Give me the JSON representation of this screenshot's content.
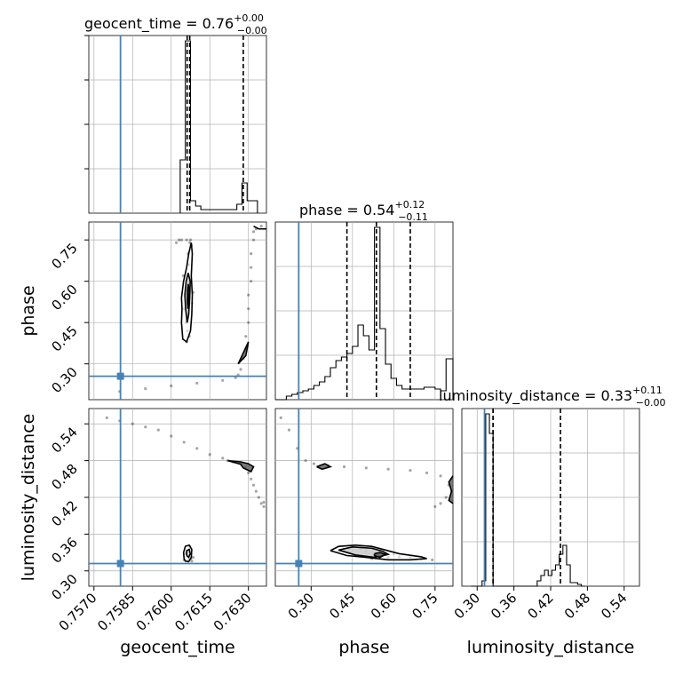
{
  "chart_data": {
    "type": "corner",
    "params": [
      "geocent_time",
      "phase",
      "luminosity_distance"
    ],
    "axis_labels": [
      "geocent_time",
      "phase",
      "luminosity_distance"
    ],
    "truth_color": "#4682b4",
    "truths": [
      0.75803,
      0.255,
      0.312
    ],
    "ranges": [
      [
        0.7568,
        0.7637
      ],
      [
        0.17,
        0.815
      ],
      [
        0.275,
        0.565
      ]
    ],
    "ticks": {
      "geocent_time": [
        "0.7570",
        "0.7585",
        "0.7600",
        "0.7615",
        "0.7630"
      ],
      "phase": [
        "0.30",
        "0.45",
        "0.60",
        "0.75"
      ],
      "luminosity_distance": [
        "0.30",
        "0.36",
        "0.42",
        "0.48",
        "0.54"
      ]
    },
    "titles": [
      {
        "param": "geocent_time",
        "prefix": "geocent_time = 0.76",
        "plus": "+0.00",
        "minus": "−0.00"
      },
      {
        "param": "phase",
        "prefix": "phase = 0.54",
        "plus": "+0.12",
        "minus": "−0.11"
      },
      {
        "param": "luminosity_distance",
        "prefix": "luminosity_distance = 0.33",
        "plus": "+0.11",
        "minus": "−0.00"
      }
    ],
    "quantiles": {
      "geocent_time": [
        0.76062,
        0.76072,
        0.7628
      ],
      "phase": [
        0.43,
        0.537,
        0.66
      ],
      "luminosity_distance": [
        0.326,
        0.326,
        0.436
      ]
    },
    "histograms": {
      "geocent_time": {
        "edges": [
          0.76035,
          0.76055,
          0.76075,
          0.76095,
          0.76115,
          0.76135,
          0.76155,
          0.76175,
          0.76195,
          0.76215,
          0.76235,
          0.76255,
          0.76275,
          0.76295,
          0.76315,
          0.76335
        ],
        "counts": [
          0.3,
          0.97,
          0.07,
          0.04,
          0.02,
          0.02,
          0.02,
          0.02,
          0.02,
          0.02,
          0.02,
          0.05,
          0.17,
          0.07,
          0.07
        ]
      },
      "phase": {
        "edges": [
          0.17,
          0.19,
          0.21,
          0.23,
          0.25,
          0.27,
          0.29,
          0.31,
          0.33,
          0.35,
          0.37,
          0.39,
          0.41,
          0.43,
          0.45,
          0.47,
          0.49,
          0.51,
          0.53,
          0.55,
          0.57,
          0.59,
          0.61,
          0.63,
          0.65,
          0.67,
          0.69,
          0.71,
          0.73,
          0.75,
          0.77,
          0.79,
          0.81,
          0.815
        ],
        "counts": [
          0.0,
          0.0,
          0.02,
          0.03,
          0.04,
          0.05,
          0.06,
          0.08,
          0.1,
          0.13,
          0.18,
          0.22,
          0.24,
          0.26,
          0.3,
          0.42,
          0.36,
          0.28,
          0.97,
          0.4,
          0.2,
          0.12,
          0.08,
          0.06,
          0.06,
          0.06,
          0.06,
          0.07,
          0.07,
          0.06,
          0.05,
          0.23,
          0.23
        ]
      },
      "luminosity_distance": {
        "edges": [
          0.29,
          0.296,
          0.302,
          0.308,
          0.314,
          0.32,
          0.326,
          0.332,
          0.338,
          0.344,
          0.35,
          0.356,
          0.362,
          0.368,
          0.374,
          0.38,
          0.386,
          0.392,
          0.398,
          0.404,
          0.41,
          0.416,
          0.422,
          0.428,
          0.434,
          0.44,
          0.446,
          0.452,
          0.458,
          0.464,
          0.47,
          0.476
        ],
        "counts": [
          0.0,
          0.0,
          0.0,
          0.03,
          0.97,
          0.86,
          0.0,
          0.0,
          0.0,
          0.0,
          0.0,
          0.0,
          0.0,
          0.0,
          0.0,
          0.0,
          0.0,
          0.0,
          0.03,
          0.06,
          0.09,
          0.06,
          0.09,
          0.12,
          0.18,
          0.23,
          0.12,
          0.02,
          0.02,
          0.01,
          0.0
        ]
      }
    },
    "pairs": [
      {
        "x": "geocent_time",
        "y": "phase",
        "samples": [
          [
            0.76055,
            0.55
          ],
          [
            0.7606,
            0.52
          ],
          [
            0.76065,
            0.58
          ],
          [
            0.76062,
            0.48
          ],
          [
            0.7607,
            0.6
          ],
          [
            0.76058,
            0.45
          ],
          [
            0.76068,
            0.66
          ],
          [
            0.76066,
            0.7
          ],
          [
            0.76072,
            0.74
          ],
          [
            0.76075,
            0.75
          ],
          [
            0.76078,
            0.73
          ],
          [
            0.7605,
            0.5
          ],
          [
            0.76085,
            0.56
          ],
          [
            0.7608,
            0.52
          ],
          [
            0.76047,
            0.62
          ],
          [
            0.76063,
            0.42
          ],
          [
            0.7607,
            0.4
          ],
          [
            0.7606,
            0.38
          ],
          [
            0.7603,
            0.75
          ],
          [
            0.7604,
            0.75
          ],
          [
            0.7602,
            0.74
          ],
          [
            0.7606,
            0.75
          ],
          [
            0.7627,
            0.28
          ],
          [
            0.7628,
            0.32
          ],
          [
            0.7629,
            0.35
          ],
          [
            0.7629,
            0.4
          ],
          [
            0.763,
            0.45
          ],
          [
            0.763,
            0.5
          ],
          [
            0.763,
            0.55
          ],
          [
            0.7631,
            0.6
          ],
          [
            0.7631,
            0.65
          ],
          [
            0.7631,
            0.7
          ],
          [
            0.7632,
            0.75
          ],
          [
            0.7632,
            0.78
          ],
          [
            0.7626,
            0.26
          ],
          [
            0.7633,
            0.79
          ],
          [
            0.7635,
            0.8
          ],
          [
            0.7625,
            0.25
          ],
          [
            0.762,
            0.24
          ],
          [
            0.761,
            0.23
          ],
          [
            0.76,
            0.22
          ],
          [
            0.759,
            0.21
          ],
          [
            0.758,
            0.2
          ]
        ],
        "contours": [
          [
            [
              0.7604,
              0.54
            ],
            [
              0.76048,
              0.6
            ],
            [
              0.7606,
              0.65
            ],
            [
              0.76068,
              0.7
            ],
            [
              0.76078,
              0.74
            ],
            [
              0.76082,
              0.7
            ],
            [
              0.76078,
              0.62
            ],
            [
              0.76082,
              0.55
            ],
            [
              0.7608,
              0.48
            ],
            [
              0.76075,
              0.42
            ],
            [
              0.7606,
              0.38
            ],
            [
              0.76045,
              0.39
            ],
            [
              0.7604,
              0.45
            ],
            [
              0.76042,
              0.5
            ],
            [
              0.7604,
              0.54
            ]
          ],
          [
            [
              0.76053,
              0.55
            ],
            [
              0.76058,
              0.6
            ],
            [
              0.76066,
              0.63
            ],
            [
              0.76074,
              0.6
            ],
            [
              0.76072,
              0.54
            ],
            [
              0.76068,
              0.48
            ],
            [
              0.76062,
              0.45
            ],
            [
              0.76056,
              0.5
            ],
            [
              0.76053,
              0.55
            ]
          ],
          [
            [
              0.76063,
              0.56
            ],
            [
              0.76066,
              0.59
            ],
            [
              0.7607,
              0.57
            ],
            [
              0.76068,
              0.52
            ],
            [
              0.76065,
              0.5
            ],
            [
              0.76063,
              0.53
            ],
            [
              0.76063,
              0.56
            ]
          ],
          [
            [
              0.7626,
              0.3
            ],
            [
              0.7629,
              0.33
            ],
            [
              0.763,
              0.38
            ],
            [
              0.7628,
              0.34
            ],
            [
              0.7626,
              0.3
            ]
          ],
          [
            [
              0.7632,
              0.8
            ],
            [
              0.7634,
              0.79
            ],
            [
              0.7637,
              0.79
            ]
          ]
        ]
      },
      {
        "x": "geocent_time",
        "y": "luminosity_distance",
        "samples": [
          [
            0.7606,
            0.33
          ],
          [
            0.76065,
            0.325
          ],
          [
            0.7607,
            0.335
          ],
          [
            0.76075,
            0.32
          ],
          [
            0.76068,
            0.318
          ],
          [
            0.76072,
            0.34
          ],
          [
            0.76055,
            0.328
          ],
          [
            0.7608,
            0.316
          ],
          [
            0.76085,
            0.322
          ],
          [
            0.7605,
            0.318
          ],
          [
            0.7622,
            0.48
          ],
          [
            0.7624,
            0.478
          ],
          [
            0.7627,
            0.475
          ],
          [
            0.7629,
            0.47
          ],
          [
            0.763,
            0.46
          ],
          [
            0.7631,
            0.45
          ],
          [
            0.7632,
            0.44
          ],
          [
            0.7633,
            0.43
          ],
          [
            0.7634,
            0.42
          ],
          [
            0.7635,
            0.41
          ],
          [
            0.7636,
            0.405
          ],
          [
            0.7636,
            0.412
          ],
          [
            0.7575,
            0.55
          ],
          [
            0.758,
            0.545
          ],
          [
            0.7585,
            0.54
          ],
          [
            0.759,
            0.535
          ],
          [
            0.7595,
            0.53
          ],
          [
            0.76,
            0.52
          ],
          [
            0.7605,
            0.51
          ],
          [
            0.761,
            0.5
          ],
          [
            0.7615,
            0.49
          ],
          [
            0.762,
            0.484
          ]
        ],
        "contours": [
          [
            [
              0.7605,
              0.32
            ],
            [
              0.76048,
              0.33
            ],
            [
              0.76055,
              0.34
            ],
            [
              0.7607,
              0.342
            ],
            [
              0.7608,
              0.335
            ],
            [
              0.76078,
              0.322
            ],
            [
              0.76068,
              0.315
            ],
            [
              0.76055,
              0.316
            ],
            [
              0.7605,
              0.32
            ]
          ],
          [
            [
              0.7606,
              0.325
            ],
            [
              0.7606,
              0.333
            ],
            [
              0.7607,
              0.335
            ],
            [
              0.76074,
              0.328
            ],
            [
              0.76068,
              0.322
            ],
            [
              0.7606,
              0.325
            ]
          ],
          [
            [
              0.7622,
              0.48
            ],
            [
              0.7627,
              0.478
            ],
            [
              0.763,
              0.475
            ],
            [
              0.7632,
              0.47
            ],
            [
              0.7631,
              0.462
            ],
            [
              0.7628,
              0.468
            ],
            [
              0.7627,
              0.474
            ],
            [
              0.7622,
              0.48
            ]
          ]
        ]
      },
      {
        "x": "phase",
        "y": "luminosity_distance",
        "samples": [
          [
            0.42,
            0.335
          ],
          [
            0.45,
            0.338
          ],
          [
            0.48,
            0.336
          ],
          [
            0.5,
            0.332
          ],
          [
            0.53,
            0.326
          ],
          [
            0.55,
            0.324
          ],
          [
            0.58,
            0.322
          ],
          [
            0.62,
            0.323
          ],
          [
            0.66,
            0.322
          ],
          [
            0.7,
            0.32
          ],
          [
            0.74,
            0.318
          ],
          [
            0.4,
            0.333
          ],
          [
            0.52,
            0.32
          ],
          [
            0.57,
            0.326
          ],
          [
            0.44,
            0.33
          ],
          [
            0.6,
            0.327
          ],
          [
            0.19,
            0.55
          ],
          [
            0.22,
            0.53
          ],
          [
            0.25,
            0.5
          ],
          [
            0.28,
            0.48
          ],
          [
            0.31,
            0.475
          ],
          [
            0.36,
            0.472
          ],
          [
            0.42,
            0.47
          ],
          [
            0.5,
            0.468
          ],
          [
            0.58,
            0.466
          ],
          [
            0.66,
            0.464
          ],
          [
            0.72,
            0.46
          ],
          [
            0.77,
            0.455
          ],
          [
            0.8,
            0.44
          ],
          [
            0.79,
            0.42
          ],
          [
            0.77,
            0.41
          ],
          [
            0.75,
            0.405
          ],
          [
            0.81,
            0.45
          ],
          [
            0.81,
            0.43
          ]
        ],
        "contours": [
          [
            [
              0.37,
              0.333
            ],
            [
              0.4,
              0.34
            ],
            [
              0.46,
              0.342
            ],
            [
              0.52,
              0.34
            ],
            [
              0.57,
              0.334
            ],
            [
              0.62,
              0.328
            ],
            [
              0.7,
              0.323
            ],
            [
              0.72,
              0.32
            ],
            [
              0.66,
              0.318
            ],
            [
              0.58,
              0.318
            ],
            [
              0.5,
              0.322
            ],
            [
              0.43,
              0.325
            ],
            [
              0.37,
              0.333
            ]
          ],
          [
            [
              0.4,
              0.334
            ],
            [
              0.45,
              0.339
            ],
            [
              0.52,
              0.337
            ],
            [
              0.56,
              0.332
            ],
            [
              0.58,
              0.327
            ],
            [
              0.53,
              0.322
            ],
            [
              0.46,
              0.326
            ],
            [
              0.4,
              0.334
            ]
          ],
          [
            [
              0.53,
              0.328
            ],
            [
              0.55,
              0.33
            ],
            [
              0.57,
              0.327
            ],
            [
              0.55,
              0.322
            ],
            [
              0.53,
              0.325
            ],
            [
              0.53,
              0.328
            ]
          ],
          [
            [
              0.32,
              0.47
            ],
            [
              0.35,
              0.475
            ],
            [
              0.37,
              0.47
            ],
            [
              0.34,
              0.466
            ],
            [
              0.32,
              0.47
            ]
          ],
          [
            [
              0.815,
              0.455
            ],
            [
              0.8,
              0.445
            ],
            [
              0.81,
              0.43
            ],
            [
              0.8,
              0.415
            ],
            [
              0.815,
              0.41
            ]
          ]
        ]
      }
    ],
    "grid": true
  }
}
